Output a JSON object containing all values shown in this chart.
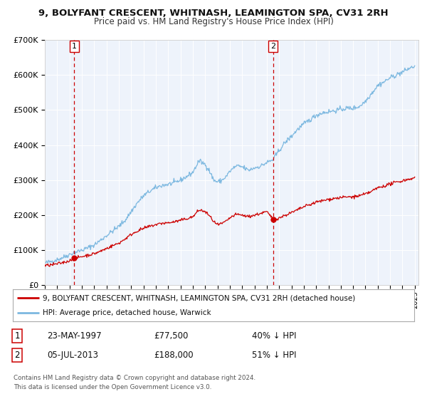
{
  "title": "9, BOLYFANT CRESCENT, WHITNASH, LEAMINGTON SPA, CV31 2RH",
  "subtitle": "Price paid vs. HM Land Registry's House Price Index (HPI)",
  "legend_line1": "9, BOLYFANT CRESCENT, WHITNASH, LEAMINGTON SPA, CV31 2RH (detached house)",
  "legend_line2": "HPI: Average price, detached house, Warwick",
  "transaction1_date": "23-MAY-1997",
  "transaction1_price": "£77,500",
  "transaction1_pct": "40% ↓ HPI",
  "transaction2_date": "05-JUL-2013",
  "transaction2_price": "£188,000",
  "transaction2_pct": "51% ↓ HPI",
  "footnote1": "Contains HM Land Registry data © Crown copyright and database right 2024.",
  "footnote2": "This data is licensed under the Open Government Licence v3.0.",
  "hpi_color": "#7cb8e0",
  "price_color": "#cc0000",
  "marker_color": "#cc0000",
  "vline_color": "#cc0000",
  "background_color": "#ffffff",
  "plot_bg_color": "#eef3fb",
  "grid_color": "#ffffff",
  "ylim": [
    0,
    700000
  ],
  "xlim_start": 1995.0,
  "xlim_end": 2025.3
}
